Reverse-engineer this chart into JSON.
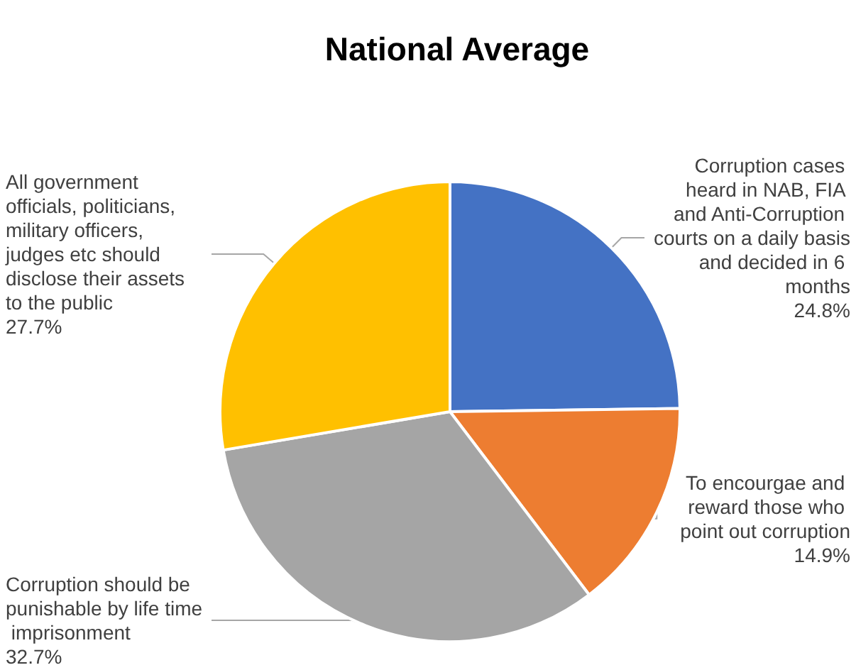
{
  "chart_data": {
    "type": "pie",
    "title": "National Average",
    "categories": [
      "Corruption cases heard in NAB, FIA and Anti-Corruption courts on a daily basis and decided in 6 months",
      "To encourgae and reward those who point out corruption",
      "Corruption should be punishable by life time imprisonment",
      "All government officials, politicians, military officers, judges etc should disclose their assets to the public"
    ],
    "values": [
      24.8,
      14.9,
      32.7,
      27.7
    ],
    "colors": [
      "#4472c4",
      "#ed7d31",
      "#a5a5a5",
      "#ffc000"
    ],
    "value_labels": [
      "24.8%",
      "14.9%",
      "32.7%",
      "27.7%"
    ],
    "legend": false
  }
}
